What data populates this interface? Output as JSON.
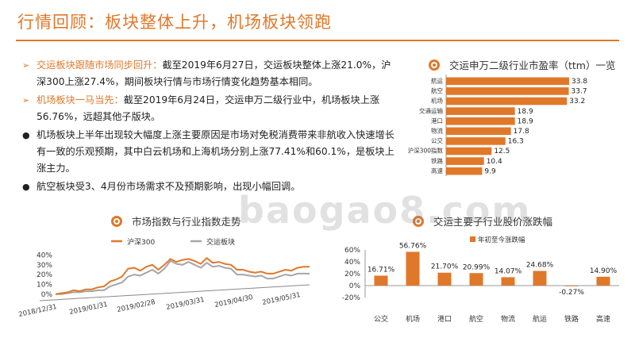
{
  "slide": {
    "title": "行情回顾：板块整体上升，机场板块领跑",
    "watermark": "baogao8.com"
  },
  "bullets": [
    {
      "lead": "交运板块跟随市场同步回升：",
      "text": "截至2019年6月27日，交运板块整体上涨21.0%，沪深300上涨27.4%，期间板块行情与市场行情变化趋势基本相同。"
    },
    {
      "lead": "机场板块一马当先：",
      "text": "截至2019年6月24日，交运申万二级行业中，机场板块上涨56.76%，远超其他子版块。"
    },
    {
      "lead": "",
      "text": "机场板块上半年出现较大幅度上涨主要原因是市场对免税消费带来非航收入快速增长有一致的乐观预期，其中白云机场和上海机场分别上涨77.41%和60.1%，是板块上涨主力。"
    },
    {
      "lead": "",
      "text": "航空板块受3、4月份市场需求不及预期影响，出现小幅回调。"
    }
  ],
  "charts": {
    "pe": {
      "title": "交运申万二级行业市盈率（ttm）一览",
      "color": "#e0782a"
    },
    "line": {
      "title": "市场指数与行业指数走势",
      "legend": [
        "沪深300",
        "交运板块"
      ],
      "colors": [
        "#e0782a",
        "#a6a6a6"
      ]
    },
    "bar": {
      "title": "交运主要子行业股价涨跌幅",
      "legend": [
        "年初至今涨跌幅"
      ],
      "color": "#e0782a"
    }
  },
  "chart_data": [
    {
      "type": "bar",
      "orientation": "horizontal",
      "title": "交运申万二级行业市盈率（ttm）一览",
      "categories": [
        "航运",
        "航空",
        "机场",
        "交通运输",
        "港口",
        "物流",
        "公交",
        "沪深300指数",
        "铁路",
        "高速"
      ],
      "values": [
        33.8,
        33.7,
        33.2,
        18.9,
        18.9,
        17.8,
        16.3,
        12.5,
        10.4,
        9.9
      ],
      "value_labels": [
        "33.8",
        "33.7",
        "33.2",
        "18.9",
        "18.9",
        "17.8",
        "16.3",
        "12.5",
        "10.4",
        "9.9"
      ],
      "xlim": [
        0,
        35
      ]
    },
    {
      "type": "line",
      "title": "市场指数与行业指数走势",
      "x_ticks": [
        "2018/12/31",
        "2019/01/31",
        "2019/02/28",
        "2019/03/31",
        "2019/04/30",
        "2019/05/31"
      ],
      "y_ticks": [
        "0%",
        "10%",
        "20%",
        "30%",
        "40%"
      ],
      "ylim": [
        -5,
        42
      ],
      "series": [
        {
          "name": "沪深300",
          "values": [
            0,
            1,
            2,
            4,
            3,
            5,
            5,
            7,
            8,
            13,
            15,
            18,
            26,
            27,
            24,
            28,
            30,
            25,
            30,
            36,
            33,
            35,
            36,
            34,
            31,
            37,
            32,
            33,
            31,
            30,
            25,
            25,
            23,
            22,
            23,
            21,
            21,
            23,
            25,
            24,
            27,
            28,
            28
          ]
        },
        {
          "name": "交运板块",
          "values": [
            0,
            0,
            1,
            2,
            2,
            3,
            3,
            4,
            4,
            8,
            10,
            12,
            18,
            20,
            19,
            22,
            25,
            21,
            26,
            34,
            31,
            30,
            33,
            30,
            27,
            32,
            28,
            29,
            27,
            26,
            20,
            20,
            19,
            18,
            19,
            16,
            16,
            18,
            20,
            19,
            21,
            21,
            21
          ]
        }
      ]
    },
    {
      "type": "bar",
      "title": "交运主要子行业股价涨跌幅",
      "categories": [
        "公交",
        "机场",
        "港口",
        "航空",
        "物流",
        "航运",
        "铁路",
        "高速"
      ],
      "series": [
        {
          "name": "年初至今涨跌幅",
          "values": [
            16.71,
            56.76,
            21.7,
            20.99,
            14.07,
            24.68,
            -0.27,
            14.9
          ]
        }
      ],
      "value_labels": [
        "16.71%",
        "56.76%",
        "21.70%",
        "20.99%",
        "14.07%",
        "24.68%",
        "-0.27%",
        "14.90%"
      ],
      "y_ticks": [
        "-20%",
        "0%",
        "20%",
        "40%",
        "60%"
      ],
      "ylim": [
        -20,
        60
      ]
    }
  ]
}
